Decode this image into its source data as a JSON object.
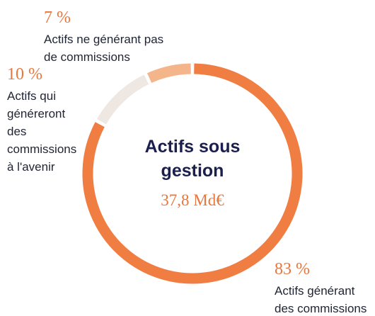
{
  "chart_data": {
    "type": "donut",
    "title": "Actifs sous gestion",
    "total_label": "37,8 Md€",
    "categories": [
      "Actifs générant des commissions",
      "Actifs qui généreront des commissions à l'avenir",
      "Actifs ne générant pas de commissions"
    ],
    "values": [
      83,
      10,
      7
    ],
    "value_labels": [
      "83 %",
      "10 %",
      "7 %"
    ],
    "colors": [
      "#f07d41",
      "#efe7e1",
      "#f5b58b"
    ]
  }
}
